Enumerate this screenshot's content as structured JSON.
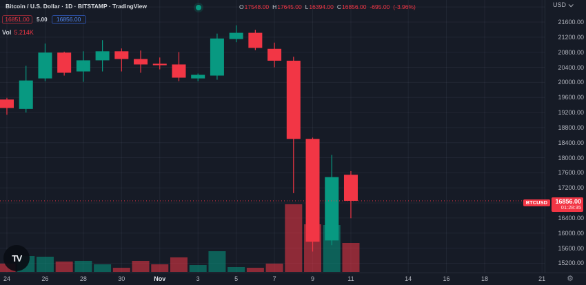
{
  "header": {
    "symbol_line": "Bitcoin / U.S. Dollar · 1D · BITSTAMP · TradingView",
    "market_status": "open",
    "ohlc": {
      "o_label": "O",
      "o": "17548.00",
      "h_label": "H",
      "h": "17645.00",
      "l_label": "L",
      "l": "16394.00",
      "c_label": "C",
      "c": "16856.00",
      "change": "-695.00",
      "change_pct": "(-3.96%)"
    },
    "quote": {
      "sell": "16851.00",
      "spread": "5.00",
      "buy": "16856.00"
    },
    "volume": {
      "label": "Vol",
      "value": "5.214K"
    }
  },
  "price_axis": {
    "currency": "USD",
    "labels": [
      "21600.00",
      "21200.00",
      "20800.00",
      "20400.00",
      "20000.00",
      "19600.00",
      "19200.00",
      "18800.00",
      "18400.00",
      "18000.00",
      "17600.00",
      "17200.00",
      "16400.00",
      "16000.00",
      "15600.00",
      "15200.00"
    ],
    "badge": {
      "symbol": "BTCUSD",
      "price": "16856.00",
      "countdown": "01:28:35"
    }
  },
  "time_axis": {
    "logo_text": "TV",
    "gear_icon": "⚙"
  },
  "colors": {
    "background": "#161b26",
    "up": "#089981",
    "down": "#f23645",
    "volume_up": "rgba(8,153,129,0.55)",
    "volume_down": "rgba(242,54,69,0.55)",
    "axis_text": "#b2b5be",
    "buy_blue": "#538af6"
  },
  "chart_data": {
    "type": "candlestick",
    "title": "Bitcoin / U.S. Dollar",
    "symbol": "BTCUSD",
    "exchange": "BITSTAMP",
    "interval": "1D",
    "currency": "USD",
    "current_price": 16856,
    "ylim": [
      15100,
      22000
    ],
    "grid": {
      "price_min": 15200,
      "price_max": 22000,
      "price_step": 400
    },
    "time_ticks": [
      {
        "label": "24",
        "day": 0
      },
      {
        "label": "26",
        "day": 2
      },
      {
        "label": "28",
        "day": 4
      },
      {
        "label": "30",
        "day": 6
      },
      {
        "label": "Nov",
        "day": 8,
        "major": true
      },
      {
        "label": "3",
        "day": 10
      },
      {
        "label": "5",
        "day": 12
      },
      {
        "label": "7",
        "day": 14
      },
      {
        "label": "9",
        "day": 16
      },
      {
        "label": "11",
        "day": 18
      },
      {
        "label": "14",
        "day": 21
      },
      {
        "label": "16",
        "day": 23
      },
      {
        "label": "18",
        "day": 25
      },
      {
        "label": "21",
        "day": 28
      }
    ],
    "candles": [
      {
        "date": "Oct 24",
        "open": 19545,
        "high": 19590,
        "low": 19140,
        "close": 19320,
        "volume_k": 1.49
      },
      {
        "date": "Oct 25",
        "open": 19295,
        "high": 20440,
        "low": 19200,
        "close": 20050,
        "volume_k": 2.85
      },
      {
        "date": "Oct 26",
        "open": 20105,
        "high": 21030,
        "low": 20030,
        "close": 20790,
        "volume_k": 2.73
      },
      {
        "date": "Oct 27",
        "open": 20790,
        "high": 20815,
        "low": 20180,
        "close": 20255,
        "volume_k": 1.86
      },
      {
        "date": "Oct 28",
        "open": 20290,
        "high": 20825,
        "low": 20015,
        "close": 20585,
        "volume_k": 1.99
      },
      {
        "date": "Oct 29",
        "open": 20585,
        "high": 21120,
        "low": 20290,
        "close": 20825,
        "volume_k": 1.36
      },
      {
        "date": "Oct 30",
        "open": 20825,
        "high": 20900,
        "low": 20290,
        "close": 20620,
        "volume_k": 0.74
      },
      {
        "date": "Oct 31",
        "open": 20620,
        "high": 20845,
        "low": 20255,
        "close": 20475,
        "volume_k": 1.99
      },
      {
        "date": "Nov 1",
        "open": 20495,
        "high": 20660,
        "low": 20345,
        "close": 20455,
        "volume_k": 1.36
      },
      {
        "date": "Nov 2",
        "open": 20475,
        "high": 20805,
        "low": 20030,
        "close": 20125,
        "volume_k": 2.61
      },
      {
        "date": "Nov 3",
        "open": 20105,
        "high": 20235,
        "low": 20030,
        "close": 20200,
        "volume_k": 1.24
      },
      {
        "date": "Nov 4",
        "open": 20180,
        "high": 21295,
        "low": 20070,
        "close": 21165,
        "volume_k": 3.72
      },
      {
        "date": "Nov 5",
        "open": 21150,
        "high": 21515,
        "low": 21065,
        "close": 21315,
        "volume_k": 0.87
      },
      {
        "date": "Nov 6",
        "open": 21315,
        "high": 21395,
        "low": 20855,
        "close": 20915,
        "volume_k": 0.74
      },
      {
        "date": "Nov 7",
        "open": 20890,
        "high": 21055,
        "low": 20400,
        "close": 20575,
        "volume_k": 1.49
      },
      {
        "date": "Nov 8",
        "open": 20575,
        "high": 20680,
        "low": 17060,
        "close": 18500,
        "volume_k": 12.16
      },
      {
        "date": "Nov 9",
        "open": 18500,
        "high": 18535,
        "low": 15510,
        "close": 15770,
        "volume_k": 8.56
      },
      {
        "date": "Nov 10",
        "open": 15805,
        "high": 18075,
        "low": 15680,
        "close": 17485,
        "volume_k": 8.44
      },
      {
        "date": "Nov 11",
        "open": 17548,
        "high": 17645,
        "low": 16394,
        "close": 16856,
        "volume_k": 5.214
      }
    ]
  }
}
